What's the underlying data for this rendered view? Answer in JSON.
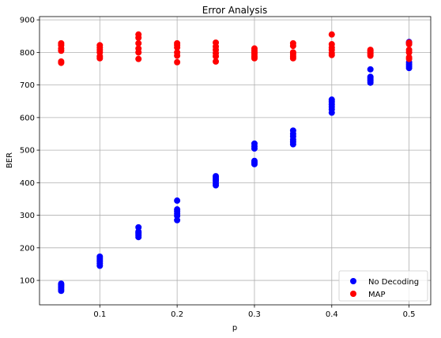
{
  "chart_data": {
    "type": "scatter",
    "title": "Error Analysis",
    "xlabel": "p",
    "ylabel": "BER",
    "xlim": [
      0.022,
      0.528
    ],
    "ylim": [
      25,
      910
    ],
    "xticks": [
      0.1,
      0.2,
      0.3,
      0.4,
      0.5
    ],
    "xtick_labels": [
      "0.1",
      "0.2",
      "0.3",
      "0.4",
      "0.5"
    ],
    "yticks": [
      100,
      200,
      300,
      400,
      500,
      600,
      700,
      800,
      900
    ],
    "ytick_labels": [
      "100",
      "200",
      "300",
      "400",
      "500",
      "600",
      "700",
      "800",
      "900"
    ],
    "grid": true,
    "legend_position": "bottom-right",
    "series": [
      {
        "name": "No Decoding",
        "color": "#0000ff",
        "points": [
          [
            0.05,
            68
          ],
          [
            0.05,
            73
          ],
          [
            0.05,
            78
          ],
          [
            0.05,
            82
          ],
          [
            0.05,
            86
          ],
          [
            0.05,
            90
          ],
          [
            0.1,
            145
          ],
          [
            0.1,
            152
          ],
          [
            0.1,
            158
          ],
          [
            0.1,
            163
          ],
          [
            0.1,
            168
          ],
          [
            0.1,
            173
          ],
          [
            0.15,
            233
          ],
          [
            0.15,
            238
          ],
          [
            0.15,
            242
          ],
          [
            0.15,
            246
          ],
          [
            0.15,
            250
          ],
          [
            0.15,
            263
          ],
          [
            0.2,
            285
          ],
          [
            0.2,
            298
          ],
          [
            0.2,
            305
          ],
          [
            0.2,
            312
          ],
          [
            0.2,
            318
          ],
          [
            0.2,
            345
          ],
          [
            0.25,
            392
          ],
          [
            0.25,
            398
          ],
          [
            0.25,
            405
          ],
          [
            0.25,
            410
          ],
          [
            0.25,
            415
          ],
          [
            0.25,
            420
          ],
          [
            0.3,
            457
          ],
          [
            0.3,
            462
          ],
          [
            0.3,
            467
          ],
          [
            0.3,
            505
          ],
          [
            0.3,
            512
          ],
          [
            0.3,
            520
          ],
          [
            0.35,
            518
          ],
          [
            0.35,
            525
          ],
          [
            0.35,
            532
          ],
          [
            0.35,
            542
          ],
          [
            0.35,
            550
          ],
          [
            0.35,
            560
          ],
          [
            0.4,
            615
          ],
          [
            0.4,
            625
          ],
          [
            0.4,
            633
          ],
          [
            0.4,
            640
          ],
          [
            0.4,
            648
          ],
          [
            0.4,
            655
          ],
          [
            0.45,
            707
          ],
          [
            0.45,
            712
          ],
          [
            0.45,
            716
          ],
          [
            0.45,
            721
          ],
          [
            0.45,
            725
          ],
          [
            0.45,
            748
          ],
          [
            0.5,
            752
          ],
          [
            0.5,
            758
          ],
          [
            0.5,
            764
          ],
          [
            0.5,
            770
          ],
          [
            0.5,
            828
          ],
          [
            0.5,
            832
          ]
        ]
      },
      {
        "name": "MAP",
        "color": "#ff0000",
        "points": [
          [
            0.05,
            768
          ],
          [
            0.05,
            772
          ],
          [
            0.05,
            805
          ],
          [
            0.05,
            812
          ],
          [
            0.05,
            822
          ],
          [
            0.05,
            828
          ],
          [
            0.1,
            782
          ],
          [
            0.1,
            788
          ],
          [
            0.1,
            800
          ],
          [
            0.1,
            808
          ],
          [
            0.1,
            815
          ],
          [
            0.1,
            822
          ],
          [
            0.15,
            780
          ],
          [
            0.15,
            800
          ],
          [
            0.15,
            812
          ],
          [
            0.15,
            828
          ],
          [
            0.15,
            845
          ],
          [
            0.15,
            855
          ],
          [
            0.2,
            770
          ],
          [
            0.2,
            790
          ],
          [
            0.2,
            800
          ],
          [
            0.2,
            815
          ],
          [
            0.2,
            822
          ],
          [
            0.2,
            828
          ],
          [
            0.25,
            772
          ],
          [
            0.25,
            788
          ],
          [
            0.25,
            798
          ],
          [
            0.25,
            808
          ],
          [
            0.25,
            818
          ],
          [
            0.25,
            830
          ],
          [
            0.3,
            782
          ],
          [
            0.3,
            788
          ],
          [
            0.3,
            795
          ],
          [
            0.3,
            800
          ],
          [
            0.3,
            806
          ],
          [
            0.3,
            812
          ],
          [
            0.35,
            782
          ],
          [
            0.35,
            788
          ],
          [
            0.35,
            795
          ],
          [
            0.35,
            800
          ],
          [
            0.35,
            820
          ],
          [
            0.35,
            828
          ],
          [
            0.4,
            792
          ],
          [
            0.4,
            798
          ],
          [
            0.4,
            808
          ],
          [
            0.4,
            815
          ],
          [
            0.4,
            825
          ],
          [
            0.4,
            855
          ],
          [
            0.45,
            790
          ],
          [
            0.45,
            795
          ],
          [
            0.45,
            798
          ],
          [
            0.45,
            802
          ],
          [
            0.45,
            805
          ],
          [
            0.45,
            808
          ],
          [
            0.5,
            780
          ],
          [
            0.5,
            785
          ],
          [
            0.5,
            800
          ],
          [
            0.5,
            808
          ],
          [
            0.5,
            825
          ],
          [
            0.5,
            830
          ]
        ]
      }
    ]
  }
}
